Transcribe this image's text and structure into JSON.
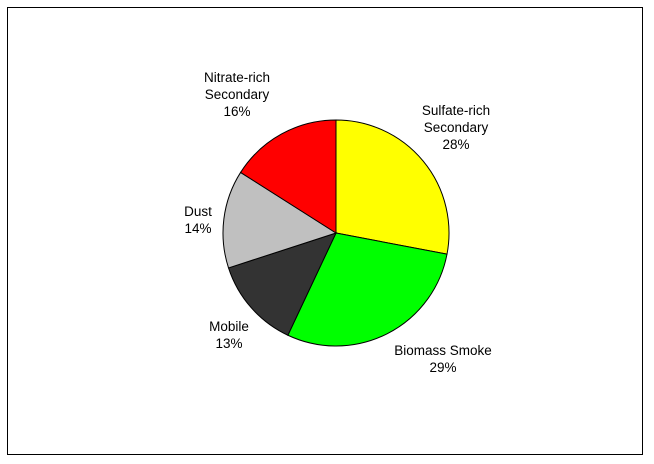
{
  "chart_data": {
    "type": "pie",
    "title": "",
    "slices": [
      {
        "label": "Sulfate-rich Secondary",
        "label_lines": [
          "Sulfate-rich",
          "Secondary"
        ],
        "value": 28,
        "value_label": "28%",
        "color": "#ffff00"
      },
      {
        "label": "Biomass Smoke",
        "label_lines": [
          "Biomass Smoke"
        ],
        "value": 29,
        "value_label": "29%",
        "color": "#00ff00"
      },
      {
        "label": "Mobile",
        "label_lines": [
          "Mobile"
        ],
        "value": 13,
        "value_label": "13%",
        "color": "#333333"
      },
      {
        "label": "Dust",
        "label_lines": [
          "Dust"
        ],
        "value": 14,
        "value_label": "14%",
        "color": "#c0c0c0"
      },
      {
        "label": "Nitrate-rich Secondary",
        "label_lines": [
          "Nitrate-rich",
          "Secondary"
        ],
        "value": 16,
        "value_label": "16%",
        "color": "#ff0000"
      }
    ],
    "start_angle_deg": 0,
    "direction": "clockwise",
    "legend": "none"
  }
}
